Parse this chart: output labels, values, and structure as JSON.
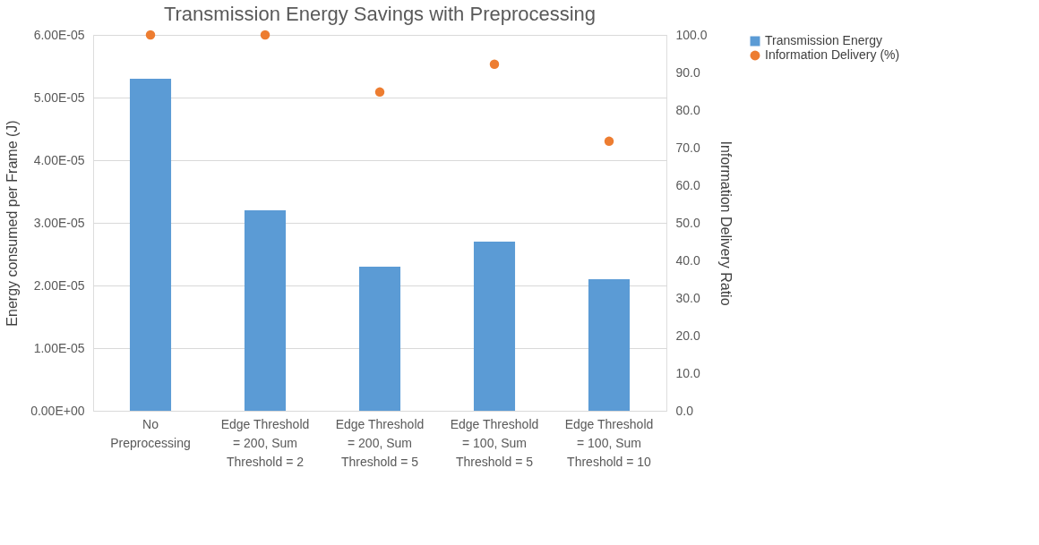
{
  "chart_data": {
    "type": "bar",
    "title": "Transmission Energy Savings with Preprocessing",
    "ylabel": "Energy consumed per Frame (J)",
    "y2label": "Information Delivery Ratio",
    "categories": [
      "No Preprocessing",
      "Edge Threshold = 200, Sum Threshold = 2",
      "Edge Threshold = 200, Sum Threshold = 5",
      "Edge Threshold = 100, Sum Threshold = 5",
      "Edge Threshold = 100, Sum Threshold = 10"
    ],
    "series": [
      {
        "name": "Transmission Energy",
        "color": "#5b9bd5",
        "values": [
          5.3e-05,
          3.2e-05,
          2.3e-05,
          2.7e-05,
          2.1e-05
        ]
      },
      {
        "name": "Information Delivery (%)",
        "type": "scatter",
        "axis": "y2",
        "color": "#ed7d31",
        "values": [
          100,
          100,
          84.8,
          92.2,
          71.7
        ]
      }
    ],
    "ylim": [
      0,
      6e-05
    ],
    "yticks": [
      {
        "value": 0,
        "label": "0.00E+00"
      },
      {
        "value": 1e-05,
        "label": "1.00E-05"
      },
      {
        "value": 2e-05,
        "label": "2.00E-05"
      },
      {
        "value": 3e-05,
        "label": "3.00E-05"
      },
      {
        "value": 4e-05,
        "label": "4.00E-05"
      },
      {
        "value": 5e-05,
        "label": "5.00E-05"
      },
      {
        "value": 6e-05,
        "label": "6.00E-05"
      }
    ],
    "y2lim": [
      0,
      100
    ],
    "y2ticks": [
      {
        "value": 0,
        "label": "0.0"
      },
      {
        "value": 10,
        "label": "10.0"
      },
      {
        "value": 20,
        "label": "20.0"
      },
      {
        "value": 30,
        "label": "30.0"
      },
      {
        "value": 40,
        "label": "40.0"
      },
      {
        "value": 50,
        "label": "50.0"
      },
      {
        "value": 60,
        "label": "60.0"
      },
      {
        "value": 70,
        "label": "70.0"
      },
      {
        "value": 80,
        "label": "80.0"
      },
      {
        "value": 90,
        "label": "90.0"
      },
      {
        "value": 100,
        "label": "100.0"
      }
    ],
    "grid": "y",
    "legend": "right",
    "marker": "circle"
  }
}
